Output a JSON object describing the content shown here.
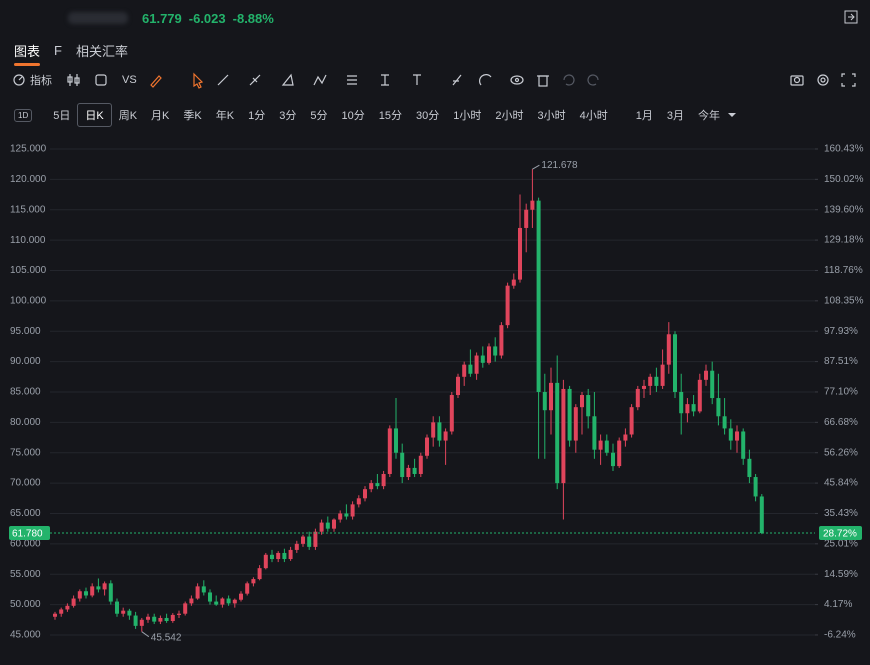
{
  "header": {
    "price": "61.779",
    "change": "-6.023",
    "change_pct": "-8.88%"
  },
  "tabs": [
    "图表",
    "F",
    "相关汇率"
  ],
  "toolbar": {
    "indicators": "指标",
    "vs": "VS"
  },
  "period_icon": "1D",
  "periods": [
    "5日",
    "日K",
    "周K",
    "月K",
    "季K",
    "年K",
    "1分",
    "3分",
    "5分",
    "10分",
    "15分",
    "30分",
    "1小时",
    "2小时",
    "3小时",
    "4小时",
    "1月",
    "3月",
    "今年"
  ],
  "chart_data": {
    "type": "candlestick",
    "up_color": "#e0455c",
    "down_color": "#23b36b",
    "grid": true,
    "open": [
      48.0,
      48.5,
      49.2,
      49.8,
      51.0,
      52.2,
      51.5,
      53.0,
      52.5,
      53.5,
      50.5,
      48.5,
      49.0,
      48.2,
      46.5,
      47.5,
      48.0,
      47.2,
      47.8,
      47.3,
      48.3,
      48.5,
      50.2,
      51.0,
      53.0,
      52.0,
      50.5,
      50.0,
      51.0,
      50.2,
      50.8,
      51.8,
      53.5,
      54.2,
      56.0,
      58.2,
      57.5,
      58.5,
      57.5,
      59.0,
      60.0,
      61.2,
      59.5,
      62.0,
      63.5,
      62.5,
      64.0,
      65.0,
      64.5,
      66.5,
      67.5,
      69.0,
      70.0,
      69.5,
      71.5,
      79.0,
      75.0,
      71.0,
      72.5,
      71.5,
      74.5,
      77.5,
      80.0,
      77.0,
      78.5,
      84.5,
      87.5,
      89.5,
      88.0,
      91.0,
      89.8,
      92.5,
      91.0,
      96.0,
      102.5,
      103.5,
      112.0,
      115.0,
      116.5,
      85.0,
      82.0,
      86.5,
      70.0,
      85.5,
      77.0,
      82.5,
      84.5,
      81.0,
      75.5,
      77.0,
      75.0,
      72.8,
      77.0,
      78.0,
      82.5,
      85.5,
      86.0,
      87.5,
      86.0,
      89.5,
      94.5,
      85.0,
      81.5,
      83.0,
      81.8,
      87.0,
      88.5,
      84.0,
      81.0,
      79.0,
      77.0,
      78.5,
      74.0,
      71.0,
      67.8
    ],
    "high": [
      48.8,
      49.5,
      50.2,
      51.5,
      52.5,
      52.8,
      53.5,
      54.3,
      53.8,
      54.0,
      51.0,
      49.5,
      49.3,
      48.8,
      47.8,
      48.5,
      48.5,
      48.2,
      48.5,
      48.6,
      49.0,
      50.5,
      51.5,
      53.5,
      54.0,
      52.5,
      51.5,
      51.2,
      51.5,
      51.0,
      52.2,
      53.8,
      54.5,
      56.5,
      58.5,
      59.0,
      58.8,
      59.2,
      59.5,
      60.5,
      61.5,
      62.0,
      62.5,
      64.0,
      64.5,
      64.2,
      65.5,
      66.5,
      67.0,
      68.0,
      69.5,
      70.5,
      71.5,
      72.0,
      79.5,
      84.0,
      76.5,
      73.0,
      74.0,
      75.0,
      78.0,
      81.0,
      81.0,
      79.0,
      85.0,
      88.0,
      90.0,
      92.0,
      91.5,
      92.5,
      93.0,
      94.0,
      96.5,
      103.0,
      104.5,
      117.5,
      116.0,
      121.678,
      117.0,
      88.0,
      89.0,
      91.0,
      87.0,
      86.0,
      83.0,
      85.0,
      85.5,
      85.0,
      78.0,
      78.0,
      76.5,
      77.5,
      79.0,
      83.0,
      86.0,
      87.0,
      88.0,
      89.0,
      92.0,
      96.5,
      95.0,
      88.0,
      84.0,
      84.5,
      88.0,
      89.5,
      90.0,
      88.0,
      84.0,
      80.5,
      79.5,
      79.0,
      75.5,
      71.5,
      68.2
    ],
    "low": [
      47.5,
      48.0,
      48.8,
      49.5,
      50.5,
      51.0,
      51.2,
      52.0,
      51.5,
      50.0,
      48.0,
      48.0,
      47.5,
      46.0,
      45.542,
      47.0,
      46.8,
      46.8,
      47.0,
      47.0,
      47.8,
      48.2,
      49.8,
      50.8,
      51.5,
      50.0,
      49.8,
      49.5,
      49.8,
      49.5,
      50.5,
      51.5,
      53.0,
      54.0,
      55.8,
      57.0,
      57.0,
      57.0,
      57.2,
      58.5,
      59.5,
      59.0,
      59.0,
      61.5,
      62.0,
      62.0,
      63.5,
      64.0,
      64.0,
      66.0,
      67.0,
      68.5,
      69.0,
      69.0,
      71.0,
      74.0,
      70.0,
      70.5,
      71.0,
      71.0,
      74.0,
      76.0,
      76.0,
      73.0,
      78.0,
      84.0,
      86.0,
      87.5,
      87.0,
      89.0,
      89.5,
      90.0,
      90.5,
      95.5,
      102.0,
      103.0,
      108.0,
      112.0,
      74.0,
      74.0,
      78.0,
      69.0,
      64.0,
      76.0,
      75.0,
      78.0,
      79.0,
      74.0,
      73.0,
      74.5,
      72.0,
      72.5,
      76.0,
      77.5,
      82.0,
      84.0,
      84.5,
      85.0,
      85.5,
      88.0,
      84.0,
      78.0,
      80.0,
      81.0,
      81.5,
      86.0,
      83.0,
      79.5,
      78.0,
      75.5,
      75.0,
      73.0,
      70.0,
      67.0,
      61.6
    ],
    "close": [
      48.5,
      49.2,
      49.8,
      51.0,
      52.2,
      51.5,
      53.0,
      52.5,
      53.5,
      50.5,
      48.5,
      49.0,
      48.2,
      46.5,
      47.5,
      48.0,
      47.2,
      47.8,
      47.3,
      48.3,
      48.5,
      50.2,
      51.0,
      53.0,
      52.0,
      50.5,
      50.0,
      51.0,
      50.2,
      50.8,
      51.8,
      53.5,
      54.2,
      56.0,
      58.2,
      57.5,
      58.5,
      57.5,
      59.0,
      60.0,
      61.2,
      59.5,
      62.0,
      63.5,
      62.5,
      64.0,
      65.0,
      64.5,
      66.5,
      67.5,
      69.0,
      70.0,
      69.5,
      71.5,
      79.0,
      75.0,
      71.0,
      72.5,
      71.5,
      74.5,
      77.5,
      80.0,
      77.0,
      78.5,
      84.5,
      87.5,
      89.5,
      88.0,
      91.0,
      89.8,
      92.5,
      91.0,
      96.0,
      102.5,
      103.5,
      112.0,
      115.0,
      116.5,
      85.0,
      82.0,
      86.5,
      70.0,
      85.5,
      77.0,
      82.5,
      84.5,
      81.0,
      75.5,
      77.0,
      75.0,
      72.8,
      77.0,
      78.0,
      82.5,
      85.5,
      86.0,
      87.5,
      86.0,
      89.5,
      94.5,
      85.0,
      81.5,
      83.0,
      81.8,
      87.0,
      88.5,
      84.0,
      81.0,
      79.0,
      77.0,
      78.5,
      74.0,
      71.0,
      67.8,
      61.78
    ],
    "ylim": [
      40.88,
      126.48
    ],
    "yticks": [
      {
        "value": 125,
        "label": "125.000"
      },
      {
        "value": 120,
        "label": "120.000"
      },
      {
        "value": 115,
        "label": "115.000"
      },
      {
        "value": 110,
        "label": "110.000"
      },
      {
        "value": 105,
        "label": "105.000"
      },
      {
        "value": 100,
        "label": "100.000"
      },
      {
        "value": 95,
        "label": "95.000"
      },
      {
        "value": 90,
        "label": "90.000"
      },
      {
        "value": 85,
        "label": "85.000"
      },
      {
        "value": 80,
        "label": "80.000"
      },
      {
        "value": 75,
        "label": "75.000"
      },
      {
        "value": 70,
        "label": "70.000"
      },
      {
        "value": 65,
        "label": "65.000"
      },
      {
        "value": 60,
        "label": "60.000"
      },
      {
        "value": 55,
        "label": "55.000"
      },
      {
        "value": 50,
        "label": "50.000"
      },
      {
        "value": 45,
        "label": "45.000"
      }
    ],
    "y2lim": [
      -14.83,
      163.51
    ],
    "y2ticks": [
      {
        "value": 160.43,
        "label": "160.43%"
      },
      {
        "value": 150.02,
        "label": "150.02%"
      },
      {
        "value": 139.6,
        "label": "139.60%"
      },
      {
        "value": 129.18,
        "label": "129.18%"
      },
      {
        "value": 118.76,
        "label": "118.76%"
      },
      {
        "value": 108.35,
        "label": "108.35%"
      },
      {
        "value": 97.93,
        "label": "97.93%"
      },
      {
        "value": 87.51,
        "label": "87.51%"
      },
      {
        "value": 77.1,
        "label": "77.10%"
      },
      {
        "value": 66.68,
        "label": "66.68%"
      },
      {
        "value": 56.26,
        "label": "56.26%"
      },
      {
        "value": 45.84,
        "label": "45.84%"
      },
      {
        "value": 35.43,
        "label": "35.43%"
      },
      {
        "value": 25.01,
        "label": "25.01%"
      },
      {
        "value": 14.59,
        "label": "14.59%"
      },
      {
        "value": 4.17,
        "label": "4.17%"
      },
      {
        "value": -6.24,
        "label": "-6.24%"
      }
    ],
    "last_price": {
      "value": 61.78,
      "label": "61.780"
    },
    "last_price_pct": {
      "value": 28.72,
      "label": "28.72%"
    },
    "high_label": 121.678,
    "low_label": 45.542
  }
}
